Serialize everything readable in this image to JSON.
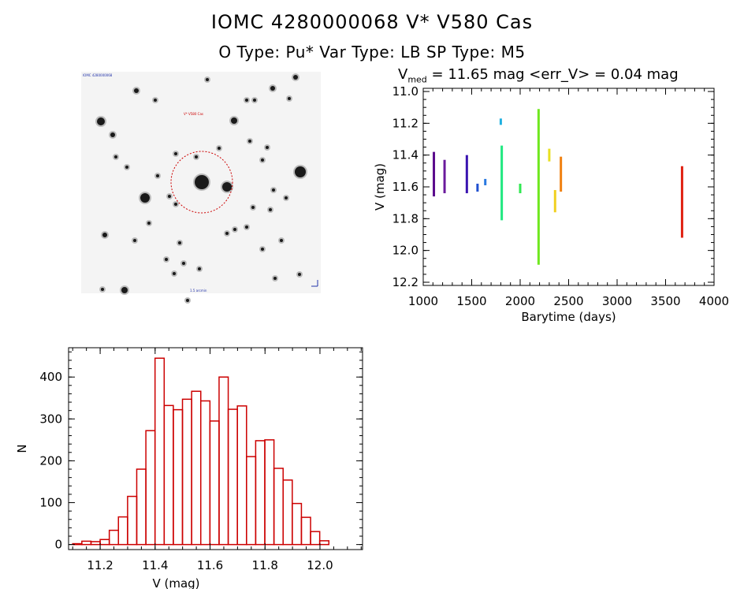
{
  "header": {
    "title_line1": "IOMC 4280000068    V* V580 Cas",
    "title_line2": "O Type: Pu*  Var Type: LB  SP Type: M5",
    "stats_prefix": "V",
    "stats_sub": "med",
    "stats_rest": " = 11.65 mag <err_V> = 0.04 mag"
  },
  "image_panel": {
    "label_top_left": "IOMC 4280000068",
    "label_target": "V* V580 Cas",
    "label_bottom": "1.5 arcmin",
    "marker_color": "#cc0000"
  },
  "chart_data": [
    {
      "type": "scatter",
      "name": "light_curve",
      "xlabel": "Barytime (days)",
      "ylabel": "V (mag)",
      "xlim": [
        1000,
        4000
      ],
      "ylim": [
        12.22,
        10.98
      ],
      "y_inverted": true,
      "xticks": [
        1000,
        1500,
        2000,
        2500,
        3000,
        3500,
        4000
      ],
      "yticks": [
        11.0,
        11.2,
        11.4,
        11.6,
        11.8,
        12.0,
        12.2
      ],
      "segments": [
        {
          "x": 1110,
          "y_min": 11.38,
          "y_max": 11.66,
          "color": "#5a0a8c"
        },
        {
          "x": 1220,
          "y_min": 11.43,
          "y_max": 11.64,
          "color": "#6a1a9c"
        },
        {
          "x": 1450,
          "y_min": 11.4,
          "y_max": 11.64,
          "color": "#3a14b0"
        },
        {
          "x": 1560,
          "y_min": 11.58,
          "y_max": 11.63,
          "color": "#2050d0"
        },
        {
          "x": 1640,
          "y_min": 11.55,
          "y_max": 11.59,
          "color": "#2878e0"
        },
        {
          "x": 1800,
          "y_min": 11.17,
          "y_max": 11.21,
          "color": "#20b0e0"
        },
        {
          "x": 1810,
          "y_min": 11.34,
          "y_max": 11.81,
          "color": "#20e880"
        },
        {
          "x": 2000,
          "y_min": 11.58,
          "y_max": 11.64,
          "color": "#30e850"
        },
        {
          "x": 2190,
          "y_min": 11.11,
          "y_max": 12.09,
          "color": "#70e820"
        },
        {
          "x": 2300,
          "y_min": 11.36,
          "y_max": 11.44,
          "color": "#e8e020"
        },
        {
          "x": 2360,
          "y_min": 11.62,
          "y_max": 11.76,
          "color": "#f0d020"
        },
        {
          "x": 2420,
          "y_min": 11.41,
          "y_max": 11.63,
          "color": "#f08010"
        },
        {
          "x": 3670,
          "y_min": 11.47,
          "y_max": 11.92,
          "color": "#e02010"
        }
      ]
    },
    {
      "type": "bar",
      "name": "histogram",
      "xlabel": "V (mag)",
      "ylabel": "N",
      "xlim": [
        11.085,
        12.155
      ],
      "ylim": [
        -12,
        470
      ],
      "xticks": [
        11.2,
        11.4,
        11.6,
        11.8,
        12.0
      ],
      "yticks": [
        0,
        100,
        200,
        300,
        400
      ],
      "bin_start": 11.1,
      "bin_width": 0.0333,
      "values": [
        2,
        8,
        7,
        12,
        34,
        66,
        115,
        180,
        272,
        445,
        332,
        322,
        347,
        366,
        343,
        295,
        400,
        323,
        331,
        210,
        248,
        250,
        182,
        154,
        98,
        65,
        31,
        9
      ],
      "color": "#cc0000"
    }
  ]
}
